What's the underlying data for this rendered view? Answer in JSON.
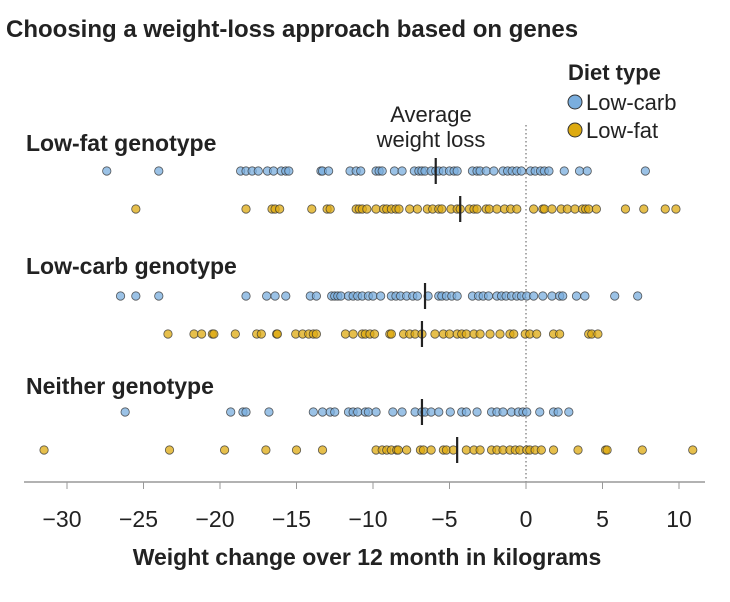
{
  "chart_data": {
    "type": "scatter",
    "title": "Choosing a weight-loss approach based on genes",
    "xlabel": "Weight change over 12 month in kilograms",
    "xlim": [
      -32,
      11.5
    ],
    "xticks": [
      -30,
      -25,
      -20,
      -15,
      -10,
      -5,
      0,
      5,
      10
    ],
    "xtick_labels": [
      "−30",
      "−25",
      "−20",
      "−15",
      "−10",
      "−5",
      "0",
      "5",
      "10"
    ],
    "reference_line": 0,
    "grid": false,
    "legend": {
      "title": "Diet type",
      "placement": "top-right",
      "entries": [
        {
          "label": "Low-carb",
          "color": "#7aaede"
        },
        {
          "label": "Low-fat",
          "color": "#ddaa10"
        }
      ]
    },
    "annotation": {
      "line1": "Average",
      "line2": "weight loss"
    },
    "groups": [
      {
        "label": "Low-fat genotype",
        "series": [
          {
            "name": "Low-carb",
            "mean": -5.9,
            "values": [
              -27.4,
              -24.0,
              -18.65,
              -18.3,
              -17.9,
              -17.5,
              -16.9,
              -16.5,
              -16.0,
              -15.7,
              -15.5,
              -13.4,
              -13.3,
              -12.9,
              -11.5,
              -11.1,
              -10.8,
              -9.8,
              -9.6,
              -9.4,
              -8.6,
              -8.1,
              -7.3,
              -7.0,
              -6.8,
              -6.6,
              -6.2,
              -5.9,
              -5.7,
              -5.4,
              -5.0,
              -4.7,
              -4.5,
              -3.5,
              -3.2,
              -3.0,
              -2.6,
              -2.1,
              -1.5,
              -1.2,
              -0.9,
              -0.6,
              -0.3,
              0.3,
              0.6,
              0.95,
              1.2,
              1.5,
              2.5,
              3.5,
              4.0,
              7.8
            ]
          },
          {
            "name": "Low-fat",
            "mean": -4.3,
            "values": [
              -25.5,
              -18.3,
              -16.6,
              -16.4,
              -16.1,
              -14.0,
              -13.0,
              -12.8,
              -11.1,
              -10.9,
              -10.7,
              -10.4,
              -9.8,
              -9.3,
              -9.1,
              -8.8,
              -8.5,
              -8.3,
              -7.6,
              -7.1,
              -6.45,
              -6.1,
              -5.7,
              -5.5,
              -4.9,
              -4.5,
              -4.3,
              -3.7,
              -3.4,
              -3.2,
              -2.6,
              -2.4,
              -1.9,
              -1.4,
              -1.0,
              -0.6,
              0.5,
              1.1,
              1.2,
              1.7,
              2.3,
              2.7,
              3.2,
              3.7,
              3.9,
              4.1,
              4.6,
              6.5,
              7.7,
              9.1,
              9.8
            ]
          }
        ]
      },
      {
        "label": "Low-carb genotype",
        "series": [
          {
            "name": "Low-carb",
            "mean": -6.6,
            "values": [
              -26.5,
              -25.5,
              -24.0,
              -18.3,
              -16.95,
              -16.4,
              -15.7,
              -14.1,
              -13.7,
              -12.7,
              -12.5,
              -12.3,
              -12.1,
              -11.6,
              -11.3,
              -11.0,
              -10.7,
              -10.3,
              -10.0,
              -9.5,
              -8.8,
              -8.5,
              -8.2,
              -7.8,
              -7.4,
              -7.1,
              -6.4,
              -5.7,
              -5.5,
              -5.2,
              -4.85,
              -4.5,
              -3.5,
              -3.1,
              -2.8,
              -2.45,
              -1.9,
              -1.6,
              -1.3,
              -0.95,
              -0.6,
              -0.3,
              0.05,
              0.5,
              1.1,
              1.7,
              2.2,
              2.4,
              3.3,
              3.85,
              5.8,
              7.3
            ]
          },
          {
            "name": "Low-fat",
            "mean": -6.8,
            "values": [
              -23.4,
              -21.7,
              -21.2,
              -20.5,
              -20.4,
              -19.0,
              -17.6,
              -17.3,
              -16.3,
              -16.25,
              -15.05,
              -14.6,
              -14.2,
              -13.9,
              -13.7,
              -11.8,
              -11.3,
              -10.7,
              -10.5,
              -10.2,
              -9.9,
              -8.9,
              -8.8,
              -8.0,
              -7.6,
              -7.25,
              -6.8,
              -5.95,
              -5.4,
              -5.0,
              -4.5,
              -4.2,
              -3.9,
              -3.4,
              -3.0,
              -2.35,
              -1.7,
              -1.05,
              -0.8,
              -0.05,
              0.25,
              0.7,
              1.8,
              2.2,
              4.1,
              4.3,
              4.7
            ]
          }
        ]
      },
      {
        "label": "Neither genotype",
        "series": [
          {
            "name": "Low-carb",
            "mean": -6.8,
            "values": [
              -26.2,
              -19.3,
              -18.5,
              -18.3,
              -16.8,
              -13.9,
              -13.3,
              -12.8,
              -12.5,
              -11.6,
              -11.3,
              -11.0,
              -10.5,
              -10.3,
              -9.8,
              -8.7,
              -8.1,
              -7.25,
              -6.8,
              -6.6,
              -6.2,
              -5.7,
              -4.95,
              -4.2,
              -3.9,
              -3.2,
              -2.25,
              -1.9,
              -1.5,
              -0.95,
              -0.5,
              -0.2,
              0.05,
              0.9,
              1.8,
              2.1,
              2.8
            ]
          },
          {
            "name": "Low-fat",
            "mean": -4.5,
            "values": [
              -31.5,
              -23.3,
              -19.7,
              -17.0,
              -15.0,
              -13.3,
              -9.8,
              -9.4,
              -9.1,
              -8.8,
              -8.45,
              -8.35,
              -7.8,
              -6.9,
              -6.7,
              -6.2,
              -5.4,
              -5.2,
              -4.75,
              -3.9,
              -3.4,
              -3.0,
              -2.25,
              -1.9,
              -1.5,
              -1.05,
              -0.7,
              -0.4,
              0.05,
              0.25,
              0.6,
              1.0,
              1.8,
              3.4,
              5.2,
              5.3,
              7.6,
              10.9
            ]
          }
        ]
      }
    ]
  }
}
